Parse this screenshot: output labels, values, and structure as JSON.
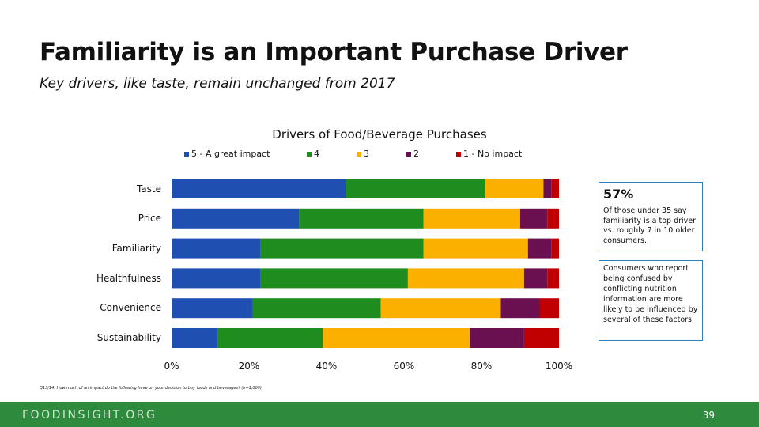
{
  "slide": {
    "title": "Familiarity is an Important Purchase Driver",
    "subtitle": "Key drivers, like taste, remain unchanged from 2017"
  },
  "chart_data": {
    "type": "bar",
    "orientation": "horizontal",
    "stacked": true,
    "title": "Drivers of Food/Beverage Purchases",
    "categories": [
      "Taste",
      "Price",
      "Familiarity",
      "Healthfulness",
      "Convenience",
      "Sustainability"
    ],
    "series": [
      {
        "name": "5 - A great impact",
        "color": "#1f4fb0",
        "values": [
          45,
          33,
          23,
          23,
          21,
          12
        ]
      },
      {
        "name": "4",
        "color": "#1e8c1e",
        "values": [
          36,
          32,
          42,
          38,
          33,
          27
        ]
      },
      {
        "name": "3",
        "color": "#fbb000",
        "values": [
          15,
          25,
          27,
          30,
          31,
          38
        ]
      },
      {
        "name": "2",
        "color": "#6a0f4f",
        "values": [
          2,
          7,
          6,
          6,
          10,
          14
        ]
      },
      {
        "name": "1 - No impact",
        "color": "#c00000",
        "values": [
          2,
          3,
          2,
          3,
          5,
          9
        ]
      }
    ],
    "xlim": [
      0,
      100
    ],
    "xticks": [
      "0%",
      "20%",
      "40%",
      "60%",
      "80%",
      "100%"
    ],
    "legend_position": "top",
    "grid": false
  },
  "callouts": [
    {
      "value": "57%",
      "text": "Of those under 35 say familiarity is a top driver vs. roughly 7 in 10 older consumers."
    },
    {
      "text": "Consumers who report being confused by conflicting nutrition information are more likely to be influenced by several of these factors"
    }
  ],
  "footnote": "Q13/14: How much of an impact do the following have on your decision to buy foods and beverages? (n=1,009)",
  "footer": {
    "brand": "FOODINSIGHT.ORG",
    "page_number": "39",
    "background_color": "#2e8b3e"
  }
}
